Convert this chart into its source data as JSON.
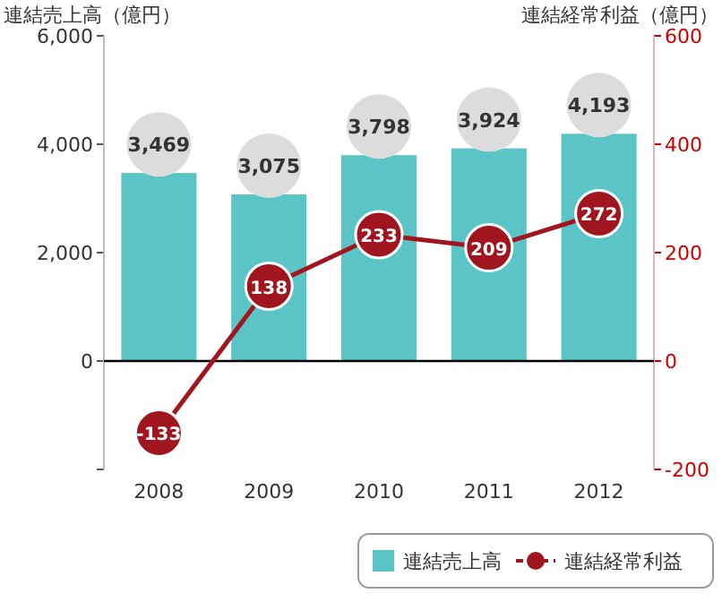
{
  "chart_data": {
    "type": "bar",
    "ylabel": "連結売上高（億円）",
    "y2label": "連結経常利益（億円）",
    "categories": [
      "2008",
      "2009",
      "2010",
      "2011",
      "2012"
    ],
    "series": [
      {
        "name": "連結売上高",
        "color": "#5bc4c6",
        "values": [
          3469,
          3075,
          3798,
          3924,
          4193
        ],
        "value_labels": [
          "3,469",
          "3,075",
          "3,798",
          "3,924",
          "4,193"
        ]
      },
      {
        "name": "連結経常利益",
        "type": "line",
        "axis": "y2",
        "color": "#a0151e",
        "marker": "circle",
        "values": [
          -133,
          138,
          233,
          209,
          272
        ]
      }
    ],
    "ylim": [
      -2000,
      6000
    ],
    "yticks": [
      {
        "value": -2000,
        "label": null
      },
      {
        "value": 0,
        "label": "0"
      },
      {
        "value": 2000,
        "label": "2,000"
      },
      {
        "value": 4000,
        "label": "4,000"
      },
      {
        "value": 6000,
        "label": "6,000"
      }
    ],
    "y2lim": [
      -200,
      600
    ],
    "y2ticks": [
      -200,
      0,
      200,
      400,
      600
    ],
    "data_labels": true,
    "legend": "bottom right",
    "grid": false,
    "ref_lines": [
      {
        "axis": "y",
        "value": 0,
        "color": "#000000"
      }
    ]
  }
}
